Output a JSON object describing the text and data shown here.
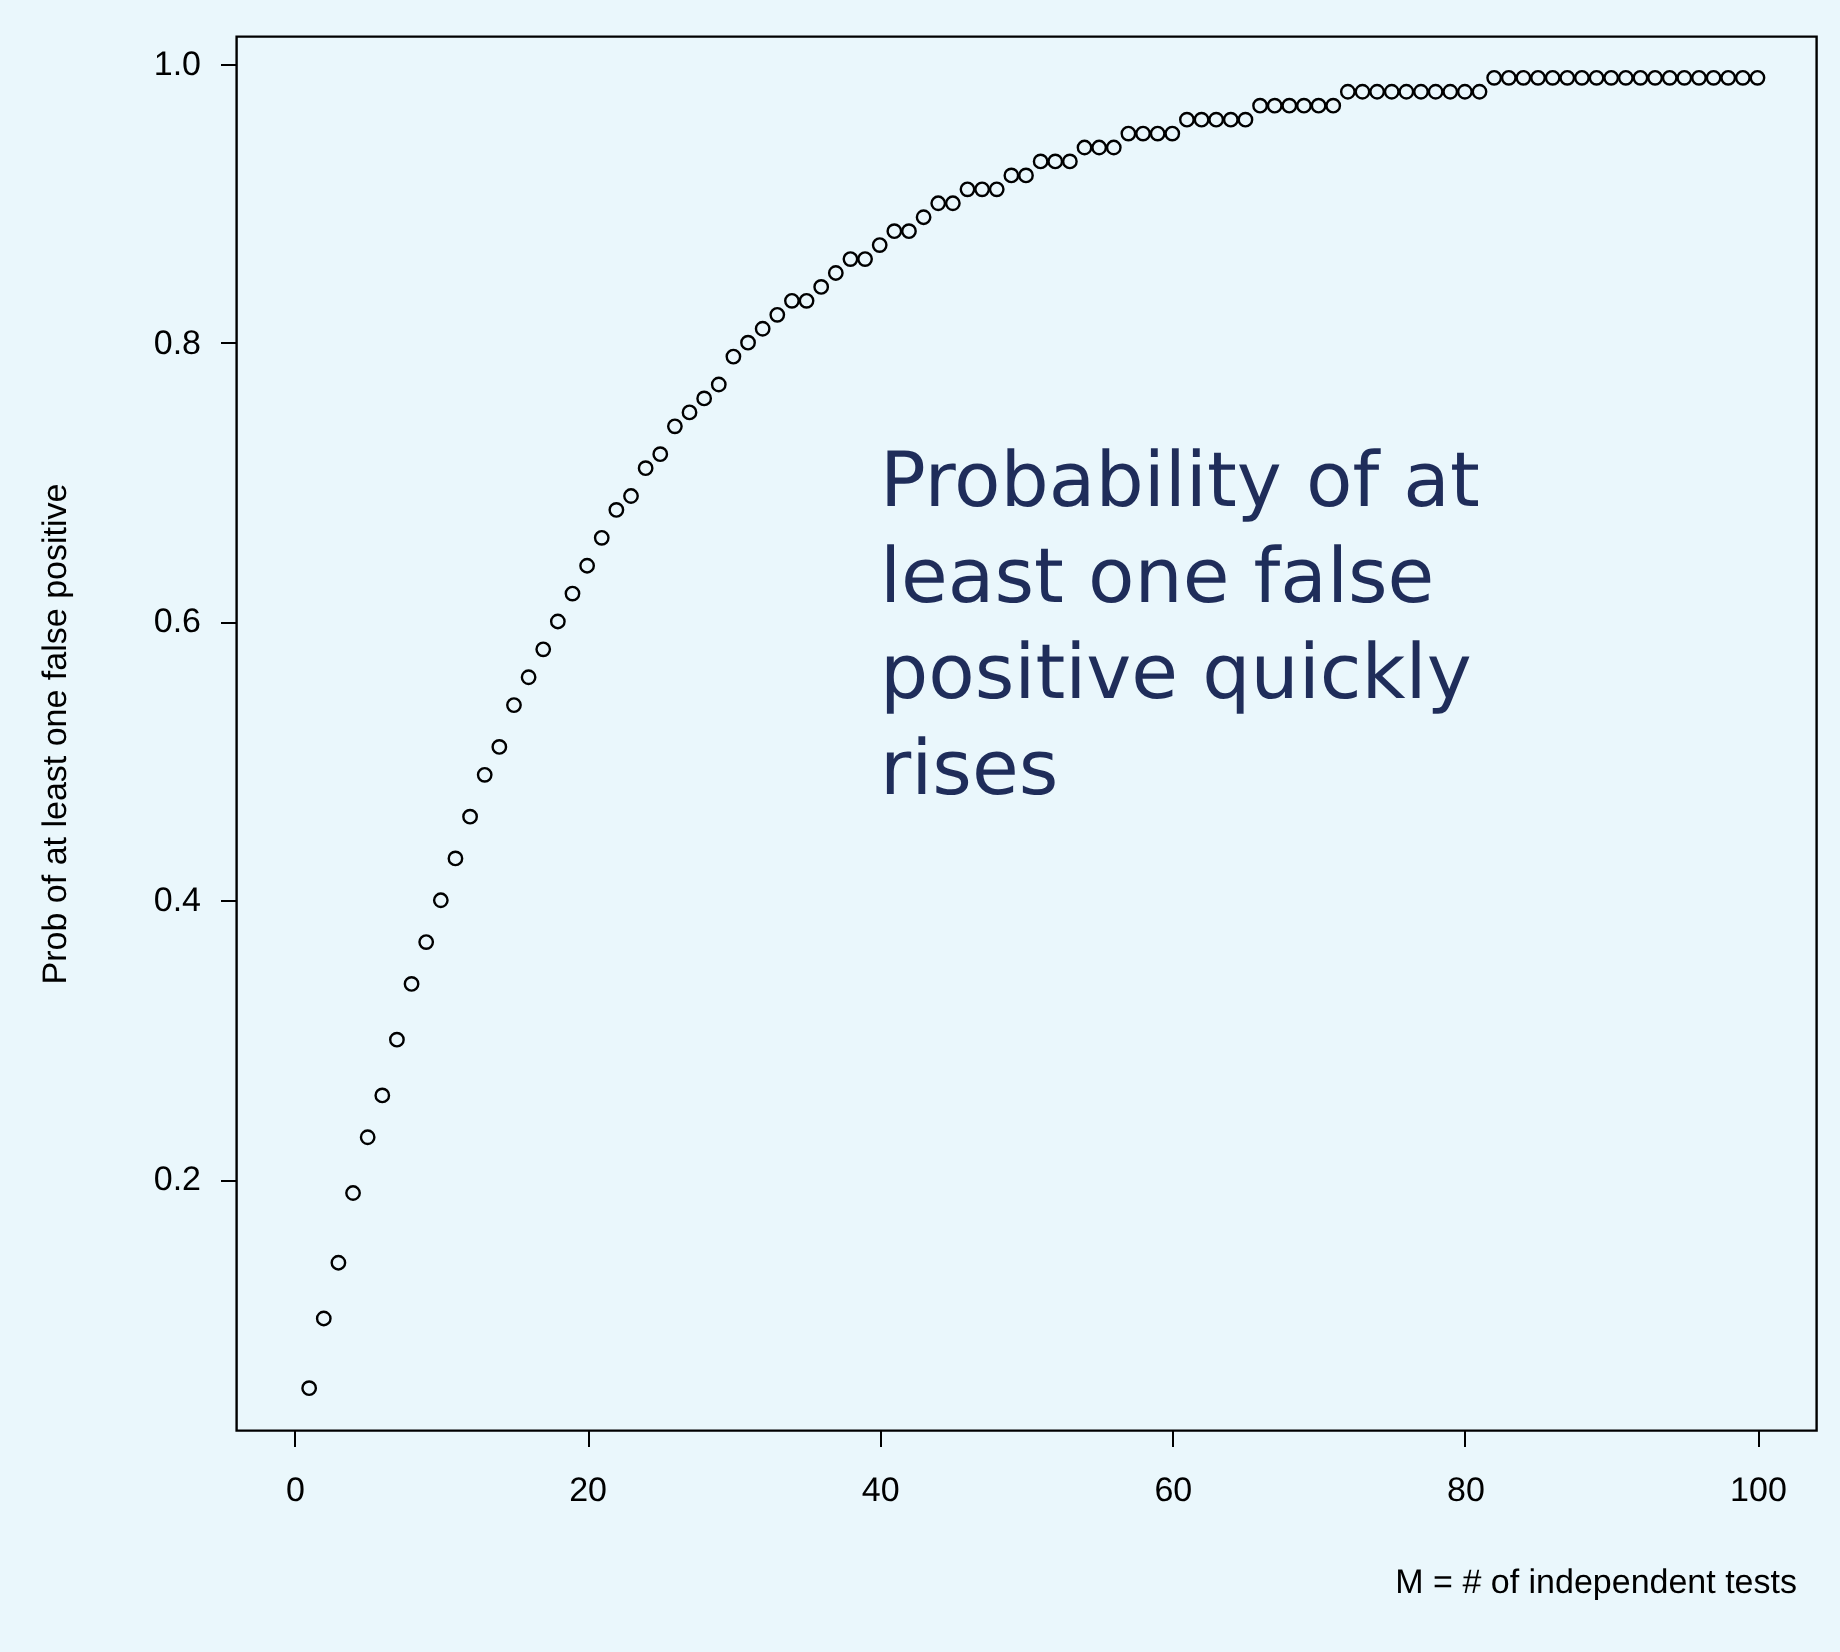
{
  "chart_data": {
    "type": "scatter",
    "xlabel": "M = # of independent tests",
    "ylabel": "Prob of at least one false positive",
    "x": [
      1,
      2,
      3,
      4,
      5,
      6,
      7,
      8,
      9,
      10,
      11,
      12,
      13,
      14,
      15,
      16,
      17,
      18,
      19,
      20,
      21,
      22,
      23,
      24,
      25,
      26,
      27,
      28,
      29,
      30,
      31,
      32,
      33,
      34,
      35,
      36,
      37,
      38,
      39,
      40,
      41,
      42,
      43,
      44,
      45,
      46,
      47,
      48,
      49,
      50,
      51,
      52,
      53,
      54,
      55,
      56,
      57,
      58,
      59,
      60,
      61,
      62,
      63,
      64,
      65,
      66,
      67,
      68,
      69,
      70,
      71,
      72,
      73,
      74,
      75,
      76,
      77,
      78,
      79,
      80,
      81,
      82,
      83,
      84,
      85,
      86,
      87,
      88,
      89,
      90,
      91,
      92,
      93,
      94,
      95,
      96,
      97,
      98,
      99,
      100
    ],
    "series": [
      {
        "color": "#000000",
        "values": [
          0.05,
          0.1,
          0.14,
          0.19,
          0.23,
          0.26,
          0.3,
          0.34,
          0.37,
          0.4,
          0.43,
          0.46,
          0.49,
          0.51,
          0.54,
          0.56,
          0.58,
          0.6,
          0.62,
          0.64,
          0.66,
          0.68,
          0.69,
          0.71,
          0.72,
          0.74,
          0.75,
          0.76,
          0.77,
          0.79,
          0.8,
          0.81,
          0.82,
          0.83,
          0.83,
          0.84,
          0.85,
          0.86,
          0.86,
          0.87,
          0.88,
          0.88,
          0.89,
          0.9,
          0.9,
          0.91,
          0.91,
          0.91,
          0.92,
          0.92,
          0.93,
          0.93,
          0.93,
          0.94,
          0.94,
          0.94,
          0.95,
          0.95,
          0.95,
          0.95,
          0.96,
          0.96,
          0.96,
          0.96,
          0.96,
          0.97,
          0.97,
          0.97,
          0.97,
          0.97,
          0.97,
          0.98,
          0.98,
          0.98,
          0.98,
          0.98,
          0.98,
          0.98,
          0.98,
          0.98,
          0.98,
          0.99,
          0.99,
          0.99,
          0.99,
          0.99,
          0.99,
          0.99,
          0.99,
          0.99,
          0.99,
          0.99,
          0.99,
          0.99,
          0.99,
          0.99,
          0.99,
          0.99,
          0.99,
          0.99
        ]
      }
    ],
    "xlim": [
      -4,
      104
    ],
    "xticks": [
      0,
      20,
      40,
      60,
      80,
      100
    ],
    "ylim": [
      0.02,
      1.02
    ],
    "yticks": [
      0.2,
      0.4,
      0.6,
      0.8,
      {
        "value": 1,
        "label": "1.0"
      }
    ],
    "marker": "circle",
    "grid": false,
    "annotations": [
      "Probability of at least one false positive quickly rises"
    ]
  }
}
